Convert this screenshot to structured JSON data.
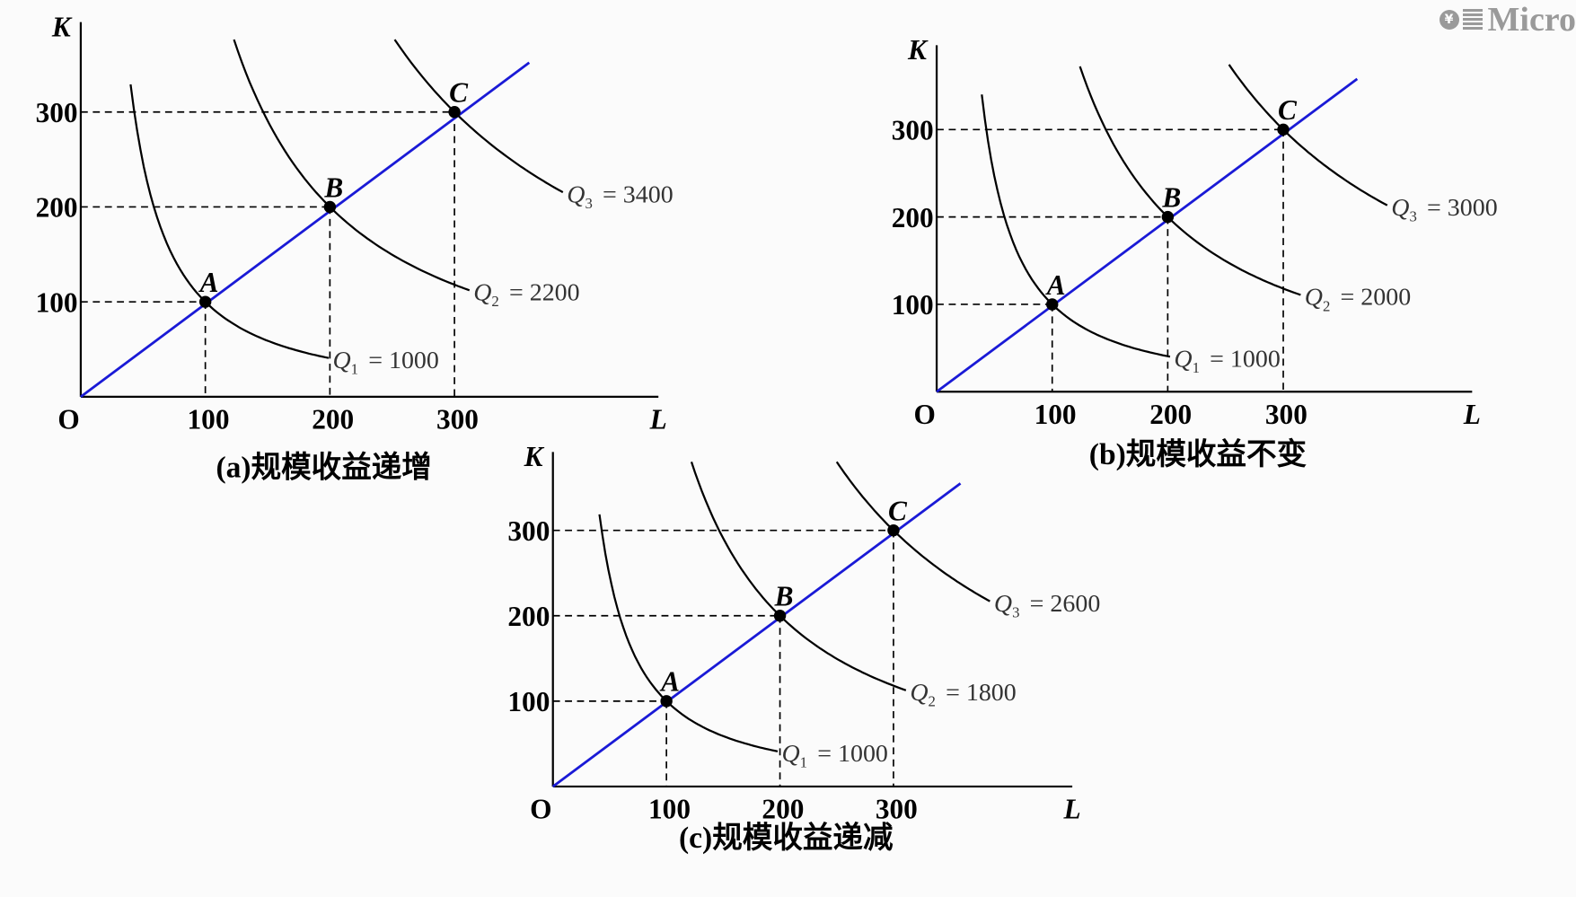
{
  "watermark": {
    "text": "Micro",
    "icon": "yen-coin-stack-icon"
  },
  "colors": {
    "ray": "#1a1ad6",
    "curve": "#000000",
    "label": "#333333"
  },
  "chart_data": [
    {
      "type": "line",
      "id": "a",
      "caption": "(a)规模收益递增",
      "xlabel": "L",
      "ylabel": "K",
      "origin_label": "O",
      "xticks": [
        100,
        200,
        300
      ],
      "yticks": [
        100,
        200,
        300
      ],
      "ray": {
        "from": [
          0,
          0
        ],
        "to": [
          360,
          352
        ]
      },
      "points": [
        {
          "label": "A",
          "L": 100,
          "K": 100
        },
        {
          "label": "B",
          "L": 200,
          "K": 200
        },
        {
          "label": "C",
          "L": 300,
          "K": 300
        }
      ],
      "isoquants": [
        {
          "name": "Q",
          "sub": "1",
          "value": "= 1000",
          "through": [
            100,
            100
          ],
          "L_range": [
            40,
            199
          ]
        },
        {
          "name": "Q",
          "sub": "2",
          "value": "= 2200",
          "through": [
            200,
            200
          ],
          "L_range": [
            123,
            312
          ]
        },
        {
          "name": "Q",
          "sub": "3",
          "value": "= 3400",
          "through": [
            300,
            300
          ],
          "L_range": [
            252,
            387
          ]
        }
      ]
    },
    {
      "type": "line",
      "id": "b",
      "caption": "(b)规模收益不变",
      "xlabel": "L",
      "ylabel": "K",
      "origin_label": "O",
      "xticks": [
        100,
        200,
        300
      ],
      "yticks": [
        100,
        200,
        300
      ],
      "ray": {
        "from": [
          0,
          0
        ],
        "to": [
          364,
          358
        ]
      },
      "points": [
        {
          "label": "A",
          "L": 100,
          "K": 100
        },
        {
          "label": "B",
          "L": 200,
          "K": 200
        },
        {
          "label": "C",
          "L": 300,
          "K": 300
        }
      ],
      "isoquants": [
        {
          "name": "Q",
          "sub": "1",
          "value": "= 1000",
          "through": [
            100,
            100
          ],
          "L_range": [
            39,
            202
          ]
        },
        {
          "name": "Q",
          "sub": "2",
          "value": "= 2000",
          "through": [
            200,
            200
          ],
          "L_range": [
            124,
            315
          ]
        },
        {
          "name": "Q",
          "sub": "3",
          "value": "= 3000",
          "through": [
            300,
            300
          ],
          "L_range": [
            253,
            390
          ]
        }
      ]
    },
    {
      "type": "line",
      "id": "c",
      "caption": "(c)规模收益递减",
      "xlabel": "L",
      "ylabel": "K",
      "origin_label": "O",
      "xticks": [
        100,
        200,
        300
      ],
      "yticks": [
        100,
        200,
        300
      ],
      "ray": {
        "from": [
          0,
          0
        ],
        "to": [
          359,
          355
        ]
      },
      "points": [
        {
          "label": "A",
          "L": 100,
          "K": 100
        },
        {
          "label": "B",
          "L": 200,
          "K": 200
        },
        {
          "label": "C",
          "L": 300,
          "K": 300
        }
      ],
      "isoquants": [
        {
          "name": "Q",
          "sub": "1",
          "value": "= 1000",
          "through": [
            100,
            100
          ],
          "L_range": [
            41,
            198
          ]
        },
        {
          "name": "Q",
          "sub": "2",
          "value": "= 1800",
          "through": [
            200,
            200
          ],
          "L_range": [
            122,
            311
          ]
        },
        {
          "name": "Q",
          "sub": "3",
          "value": "= 2600",
          "through": [
            300,
            300
          ],
          "L_range": [
            250,
            385
          ]
        }
      ]
    }
  ]
}
